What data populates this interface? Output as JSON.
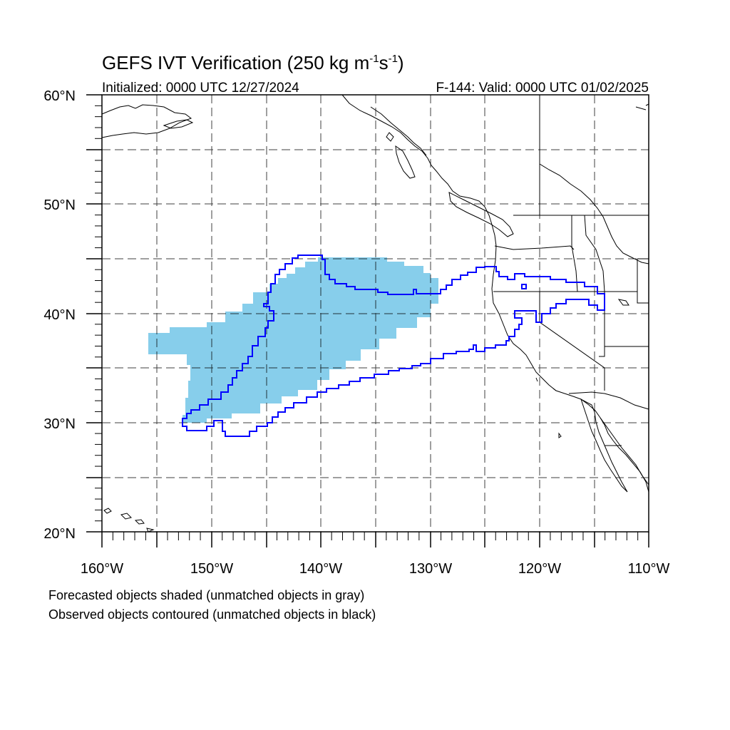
{
  "header": {
    "title_main": "GEFS IVT Verification (250 kg m",
    "title_exp1": "-1",
    "title_mid": "s",
    "title_exp2": "-1",
    "title_end": ")",
    "initialized": "Initialized: 0000 UTC 12/27/2024",
    "valid": "F-144: Valid: 0000 UTC 01/02/2025"
  },
  "map": {
    "lon_range": [
      -160,
      -110
    ],
    "lat_range": [
      20,
      60
    ],
    "lat_labels": [
      "60°N",
      "50°N",
      "40°N",
      "30°N",
      "20°N"
    ],
    "lon_labels": [
      "160°W",
      "150°W",
      "140°W",
      "130°W",
      "120°W",
      "110°W"
    ],
    "colors": {
      "forecast_fill": "#87ceeb",
      "observed_contour": "#0000ff",
      "coast": "#000000",
      "grid": "#000000"
    }
  },
  "notes": {
    "line1": "Forecasted objects shaded (unmatched objects in gray)",
    "line2": "Observed objects contoured (unmatched objects in black)"
  }
}
